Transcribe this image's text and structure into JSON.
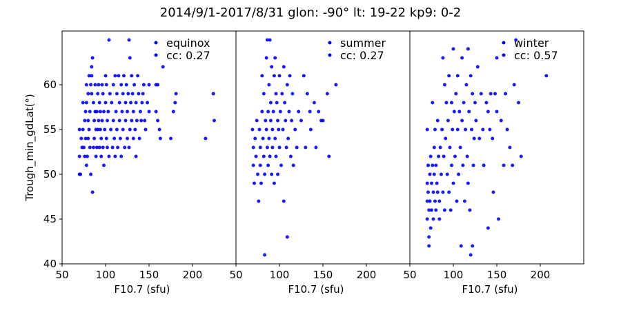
{
  "title": "2014/9/1-2017/8/31   glon: -90°  lt: 19-22   kp9: 0-2",
  "marker_color": "#0000ff",
  "chart_data": [
    {
      "type": "scatter",
      "series_name": "equinox",
      "cc": "cc: 0.27",
      "xlabel": "F10.7 (sfu)",
      "ylabel": "Trough_min_gdLat(°)",
      "xlim": [
        50,
        250
      ],
      "ylim": [
        40,
        66
      ],
      "xticks": [
        50,
        100,
        150,
        200
      ],
      "yticks": [
        40,
        45,
        50,
        55,
        60
      ],
      "points": [
        [
          70,
          55
        ],
        [
          70,
          52
        ],
        [
          70,
          50
        ],
        [
          71,
          50
        ],
        [
          72,
          54
        ],
        [
          73,
          53
        ],
        [
          74,
          55
        ],
        [
          74,
          58
        ],
        [
          75,
          53
        ],
        [
          76,
          56
        ],
        [
          76,
          52
        ],
        [
          77,
          57
        ],
        [
          77,
          54
        ],
        [
          78,
          58
        ],
        [
          78,
          60
        ],
        [
          78,
          51
        ],
        [
          79,
          52
        ],
        [
          80,
          59
        ],
        [
          80,
          54
        ],
        [
          80,
          56
        ],
        [
          81,
          61
        ],
        [
          81,
          55
        ],
        [
          82,
          53
        ],
        [
          82,
          57
        ],
        [
          83,
          60
        ],
        [
          83,
          50
        ],
        [
          84,
          59
        ],
        [
          84,
          62
        ],
        [
          84,
          61
        ],
        [
          85,
          63
        ],
        [
          85,
          48
        ],
        [
          86,
          58
        ],
        [
          86,
          53
        ],
        [
          87,
          56
        ],
        [
          87,
          54
        ],
        [
          88,
          57
        ],
        [
          88,
          60
        ],
        [
          89,
          55
        ],
        [
          89,
          52
        ],
        [
          90,
          53
        ],
        [
          90,
          57
        ],
        [
          91,
          55
        ],
        [
          91,
          59
        ],
        [
          92,
          56
        ],
        [
          92,
          60
        ],
        [
          93,
          58
        ],
        [
          93,
          53
        ],
        [
          94,
          57
        ],
        [
          94,
          55
        ],
        [
          95,
          54
        ],
        [
          95,
          52
        ],
        [
          96,
          60
        ],
        [
          96,
          56
        ],
        [
          97,
          59
        ],
        [
          97,
          53
        ],
        [
          98,
          57
        ],
        [
          98,
          51
        ],
        [
          99,
          55
        ],
        [
          100,
          61
        ],
        [
          100,
          58
        ],
        [
          101,
          60
        ],
        [
          101,
          54
        ],
        [
          102,
          56
        ],
        [
          102,
          53
        ],
        [
          103,
          57
        ],
        [
          104,
          65
        ],
        [
          104,
          52
        ],
        [
          105,
          59
        ],
        [
          106,
          55
        ],
        [
          107,
          58
        ],
        [
          108,
          53
        ],
        [
          109,
          60
        ],
        [
          109,
          56
        ],
        [
          110,
          54
        ],
        [
          111,
          61
        ],
        [
          111,
          52
        ],
        [
          112,
          57
        ],
        [
          113,
          59
        ],
        [
          113,
          55
        ],
        [
          114,
          53
        ],
        [
          115,
          61
        ],
        [
          116,
          58
        ],
        [
          116,
          56
        ],
        [
          117,
          54
        ],
        [
          118,
          60
        ],
        [
          118,
          52
        ],
        [
          119,
          57
        ],
        [
          120,
          55
        ],
        [
          120,
          59
        ],
        [
          121,
          61
        ],
        [
          122,
          53
        ],
        [
          123,
          58
        ],
        [
          123,
          56
        ],
        [
          124,
          60
        ],
        [
          125,
          54
        ],
        [
          125,
          57
        ],
        [
          126,
          59
        ],
        [
          127,
          65
        ],
        [
          127,
          53
        ],
        [
          128,
          63
        ],
        [
          128,
          55
        ],
        [
          129,
          58
        ],
        [
          130,
          61
        ],
        [
          130,
          56
        ],
        [
          131,
          59
        ],
        [
          132,
          54
        ],
        [
          132,
          57
        ],
        [
          133,
          60
        ],
        [
          134,
          55
        ],
        [
          135,
          52
        ],
        [
          135,
          58
        ],
        [
          136,
          56
        ],
        [
          137,
          61
        ],
        [
          138,
          59
        ],
        [
          139,
          54
        ],
        [
          140,
          57
        ],
        [
          141,
          56
        ],
        [
          142,
          58
        ],
        [
          143,
          59
        ],
        [
          144,
          60
        ],
        [
          145,
          56
        ],
        [
          146,
          55
        ],
        [
          148,
          58
        ],
        [
          150,
          57
        ],
        [
          150,
          60
        ],
        [
          158,
          60
        ],
        [
          158,
          57
        ],
        [
          160,
          56
        ],
        [
          160,
          60
        ],
        [
          162,
          55
        ],
        [
          163,
          54
        ],
        [
          166,
          62
        ],
        [
          175,
          54
        ],
        [
          178,
          57
        ],
        [
          180,
          58
        ],
        [
          181,
          59
        ],
        [
          215,
          54
        ],
        [
          224,
          59
        ],
        [
          225,
          56
        ]
      ]
    },
    {
      "type": "scatter",
      "series_name": "summer",
      "cc": "cc: 0.27",
      "xlabel": "F10.7 (sfu)",
      "xlim": [
        50,
        250
      ],
      "ylim": [
        40,
        66
      ],
      "xticks": [
        50,
        100,
        150,
        200
      ],
      "points": [
        [
          69,
          55
        ],
        [
          70,
          53
        ],
        [
          70,
          51
        ],
        [
          71,
          49
        ],
        [
          72,
          54
        ],
        [
          73,
          52
        ],
        [
          74,
          56
        ],
        [
          75,
          50
        ],
        [
          76,
          47
        ],
        [
          77,
          55
        ],
        [
          78,
          53
        ],
        [
          78,
          51
        ],
        [
          79,
          49
        ],
        [
          80,
          57
        ],
        [
          80,
          61
        ],
        [
          81,
          54
        ],
        [
          82,
          52
        ],
        [
          82,
          59
        ],
        [
          83,
          50
        ],
        [
          83,
          41
        ],
        [
          84,
          56
        ],
        [
          85,
          63
        ],
        [
          85,
          55
        ],
        [
          86,
          53
        ],
        [
          86,
          65
        ],
        [
          87,
          57
        ],
        [
          87,
          51
        ],
        [
          88,
          60
        ],
        [
          88,
          54
        ],
        [
          89,
          65
        ],
        [
          89,
          52
        ],
        [
          90,
          58
        ],
        [
          90,
          56
        ],
        [
          91,
          62
        ],
        [
          91,
          50
        ],
        [
          92,
          55
        ],
        [
          92,
          53
        ],
        [
          93,
          57
        ],
        [
          94,
          61
        ],
        [
          94,
          49
        ],
        [
          95,
          63
        ],
        [
          95,
          54
        ],
        [
          96,
          59
        ],
        [
          96,
          52
        ],
        [
          97,
          58
        ],
        [
          98,
          56
        ],
        [
          98,
          50
        ],
        [
          99,
          55
        ],
        [
          100,
          61
        ],
        [
          100,
          53
        ],
        [
          101,
          57
        ],
        [
          102,
          51
        ],
        [
          103,
          59
        ],
        [
          104,
          55
        ],
        [
          105,
          62
        ],
        [
          105,
          47
        ],
        [
          106,
          58
        ],
        [
          107,
          56
        ],
        [
          108,
          53
        ],
        [
          109,
          60
        ],
        [
          109,
          43
        ],
        [
          110,
          54
        ],
        [
          111,
          57
        ],
        [
          112,
          61
        ],
        [
          113,
          52
        ],
        [
          114,
          56
        ],
        [
          115,
          59
        ],
        [
          116,
          51
        ],
        [
          118,
          55
        ],
        [
          120,
          53
        ],
        [
          122,
          57
        ],
        [
          125,
          56
        ],
        [
          128,
          61
        ],
        [
          130,
          53
        ],
        [
          132,
          59
        ],
        [
          135,
          57
        ],
        [
          136,
          55
        ],
        [
          140,
          58
        ],
        [
          142,
          53
        ],
        [
          145,
          57
        ],
        [
          148,
          56
        ],
        [
          150,
          56
        ],
        [
          155,
          59
        ],
        [
          157,
          52
        ],
        [
          165,
          60
        ]
      ]
    },
    {
      "type": "scatter",
      "series_name": "winter",
      "cc": "cc: 0.57",
      "xlabel": "F10.7 (sfu)",
      "xlim": [
        50,
        250
      ],
      "ylim": [
        40,
        66
      ],
      "xticks": [
        50,
        100,
        150,
        200
      ],
      "points": [
        [
          70,
          55
        ],
        [
          70,
          49
        ],
        [
          70,
          47
        ],
        [
          70,
          45
        ],
        [
          71,
          51
        ],
        [
          71,
          48
        ],
        [
          72,
          46
        ],
        [
          72,
          43
        ],
        [
          72,
          42
        ],
        [
          73,
          50
        ],
        [
          73,
          47
        ],
        [
          74,
          44
        ],
        [
          74,
          52
        ],
        [
          75,
          49
        ],
        [
          75,
          46
        ],
        [
          76,
          58
        ],
        [
          76,
          51
        ],
        [
          77,
          48
        ],
        [
          77,
          45
        ],
        [
          78,
          53
        ],
        [
          78,
          50
        ],
        [
          79,
          47
        ],
        [
          79,
          55
        ],
        [
          80,
          46
        ],
        [
          80,
          51
        ],
        [
          81,
          49
        ],
        [
          82,
          48
        ],
        [
          82,
          56
        ],
        [
          83,
          52
        ],
        [
          84,
          47
        ],
        [
          84,
          45
        ],
        [
          85,
          53
        ],
        [
          86,
          50
        ],
        [
          87,
          55
        ],
        [
          88,
          48
        ],
        [
          88,
          63
        ],
        [
          89,
          52
        ],
        [
          90,
          46
        ],
        [
          90,
          60
        ],
        [
          91,
          54
        ],
        [
          92,
          58
        ],
        [
          93,
          50
        ],
        [
          94,
          56
        ],
        [
          95,
          48
        ],
        [
          95,
          61
        ],
        [
          96,
          53
        ],
        [
          97,
          46
        ],
        [
          98,
          58
        ],
        [
          98,
          51
        ],
        [
          99,
          55
        ],
        [
          100,
          49
        ],
        [
          100,
          64
        ],
        [
          101,
          57
        ],
        [
          102,
          52
        ],
        [
          103,
          59
        ],
        [
          104,
          47
        ],
        [
          105,
          55
        ],
        [
          105,
          61
        ],
        [
          106,
          50
        ],
        [
          107,
          57
        ],
        [
          108,
          53
        ],
        [
          109,
          42
        ],
        [
          110,
          56
        ],
        [
          110,
          63
        ],
        [
          111,
          51
        ],
        [
          112,
          58
        ],
        [
          113,
          47
        ],
        [
          114,
          55
        ],
        [
          115,
          60
        ],
        [
          116,
          52
        ],
        [
          117,
          64
        ],
        [
          117,
          49
        ],
        [
          118,
          57
        ],
        [
          119,
          46
        ],
        [
          120,
          61
        ],
        [
          120,
          41
        ],
        [
          121,
          55
        ],
        [
          122,
          59
        ],
        [
          122,
          42
        ],
        [
          123,
          51
        ],
        [
          124,
          54
        ],
        [
          125,
          58
        ],
        [
          126,
          56
        ],
        [
          128,
          62
        ],
        [
          130,
          54
        ],
        [
          132,
          59
        ],
        [
          134,
          55
        ],
        [
          135,
          51
        ],
        [
          138,
          58
        ],
        [
          140,
          44
        ],
        [
          140,
          57
        ],
        [
          142,
          55
        ],
        [
          143,
          59
        ],
        [
          145,
          54
        ],
        [
          146,
          48
        ],
        [
          148,
          59
        ],
        [
          150,
          57
        ],
        [
          150,
          63
        ],
        [
          152,
          45
        ],
        [
          155,
          56
        ],
        [
          158,
          51
        ],
        [
          160,
          59
        ],
        [
          162,
          55
        ],
        [
          165,
          53
        ],
        [
          168,
          51
        ],
        [
          170,
          60
        ],
        [
          172,
          65
        ],
        [
          175,
          58
        ],
        [
          178,
          52
        ],
        [
          207,
          61
        ]
      ]
    }
  ]
}
